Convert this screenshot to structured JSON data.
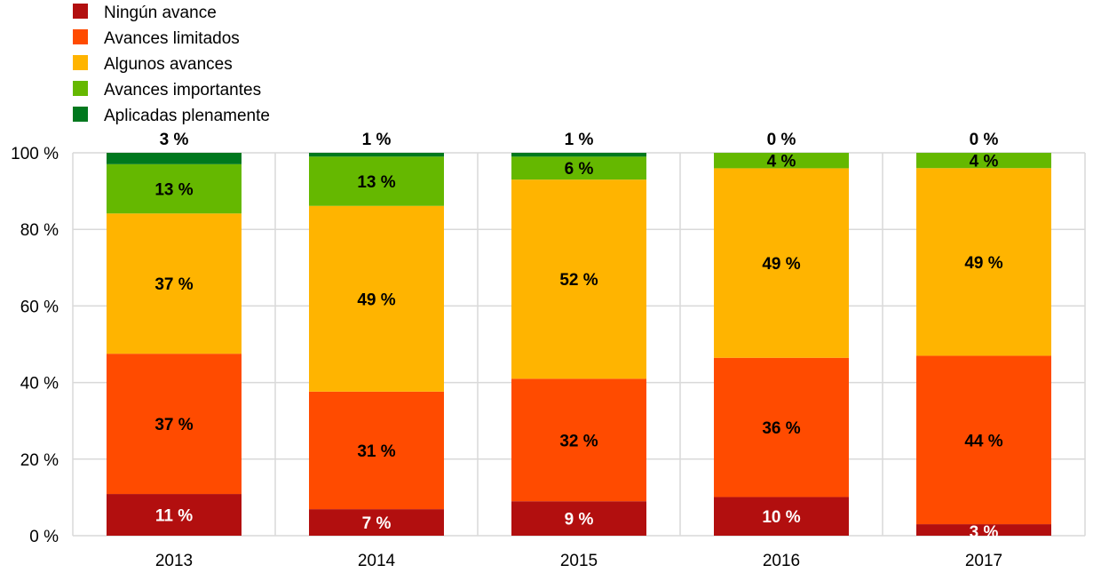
{
  "chart_data": {
    "type": "bar",
    "stacked": true,
    "categories": [
      "2013",
      "2014",
      "2015",
      "2016",
      "2017"
    ],
    "series": [
      {
        "name": "Ningún avance",
        "color": "#B20F0F",
        "values": [
          11,
          7,
          9,
          10,
          3
        ]
      },
      {
        "name": "Avances limitados",
        "color": "#FF4B00",
        "values": [
          37,
          31,
          32,
          36,
          44
        ]
      },
      {
        "name": "Algunos avances",
        "color": "#FFB400",
        "values": [
          37,
          49,
          52,
          49,
          49
        ]
      },
      {
        "name": "Avances importantes",
        "color": "#65B800",
        "values": [
          13,
          13,
          6,
          4,
          4
        ]
      },
      {
        "name": "Aplicadas plenamente",
        "color": "#00781E",
        "values": [
          3,
          1,
          1,
          0,
          0
        ]
      }
    ],
    "ylim": [
      0,
      100
    ],
    "yticks": [
      "0 %",
      "20 %",
      "40 %",
      "60 %",
      "80 %",
      "100 %"
    ],
    "value_suffix": " %",
    "grid": true,
    "legend_placement": "top-left",
    "title": "",
    "xlabel": "",
    "ylabel": ""
  }
}
